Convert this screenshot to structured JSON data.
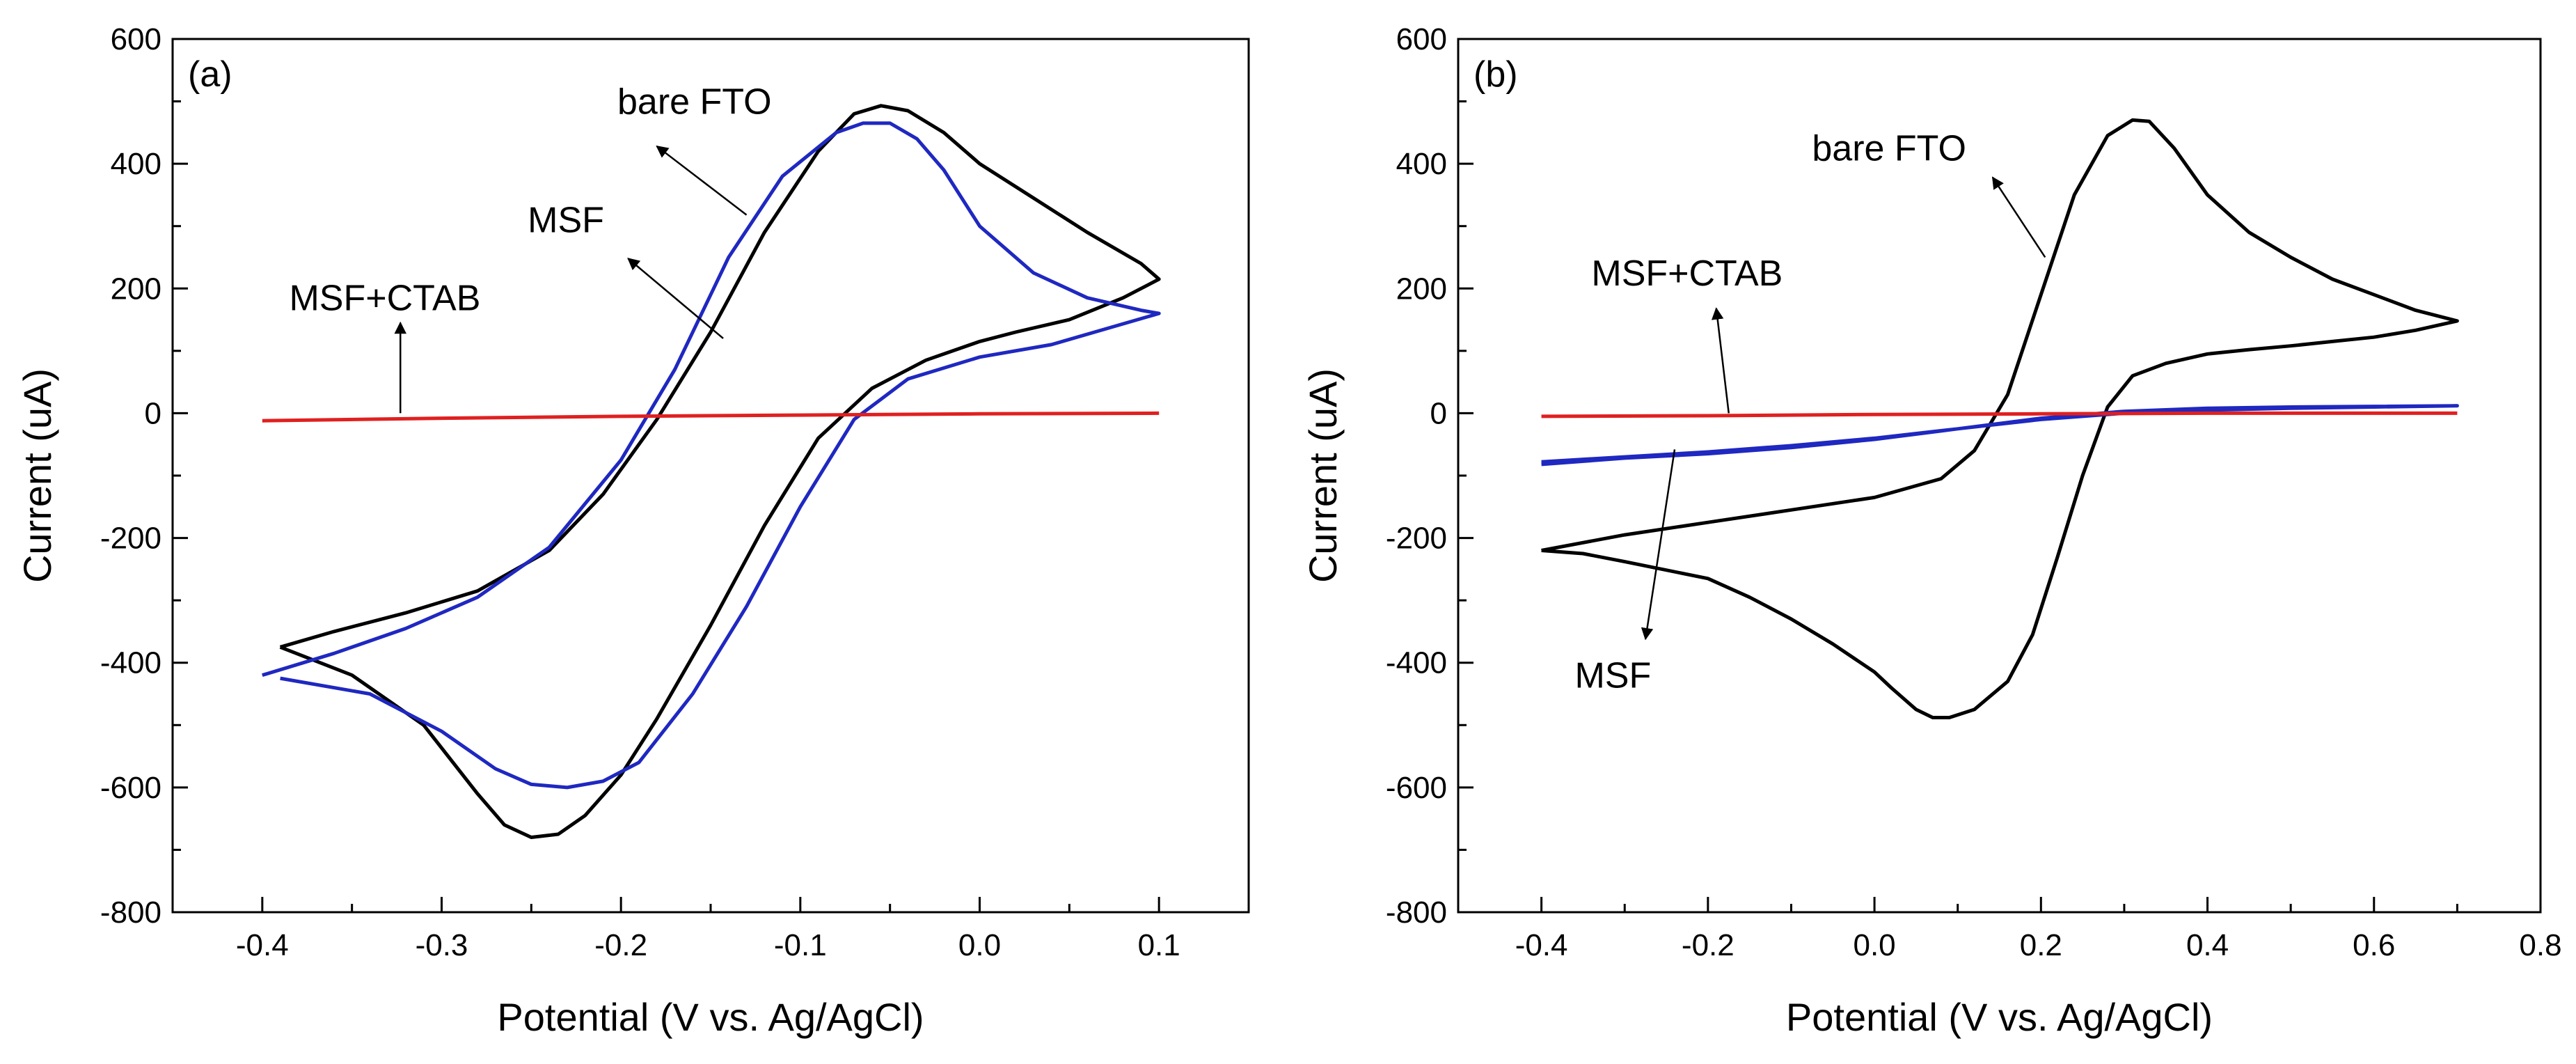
{
  "chart_data": [
    {
      "type": "line",
      "panel_label": "(a)",
      "xlabel": "Potential (V vs. Ag/AgCl)",
      "ylabel": "Current (uA)",
      "xlim": [
        -0.45,
        0.15
      ],
      "ylim": [
        -800,
        600
      ],
      "xticks": [
        -0.4,
        -0.3,
        -0.2,
        -0.1,
        0.0,
        0.1
      ],
      "xtick_labels": [
        "-0.4",
        "-0.3",
        "-0.2",
        "-0.1",
        "0.0",
        "0.1"
      ],
      "yticks": [
        -800,
        -600,
        -400,
        -200,
        0,
        200,
        400,
        600
      ],
      "ytick_labels": [
        "-800",
        "-600",
        "-400",
        "-200",
        "0",
        "200",
        "400",
        "600"
      ],
      "series": [
        {
          "name": "bare FTO",
          "color": "#000000",
          "x": [
            -0.39,
            -0.36,
            -0.32,
            -0.28,
            -0.24,
            -0.21,
            -0.18,
            -0.15,
            -0.12,
            -0.09,
            -0.07,
            -0.055,
            -0.04,
            -0.02,
            0.0,
            0.03,
            0.06,
            0.09,
            0.1,
            0.08,
            0.05,
            0.02,
            0.0,
            -0.03,
            -0.06,
            -0.09,
            -0.12,
            -0.15,
            -0.18,
            -0.2,
            -0.22,
            -0.235,
            -0.25,
            -0.265,
            -0.28,
            -0.31,
            -0.35,
            -0.39
          ],
          "y": [
            -375,
            -350,
            -320,
            -285,
            -220,
            -130,
            -10,
            130,
            290,
            420,
            480,
            493,
            485,
            450,
            400,
            345,
            290,
            240,
            215,
            185,
            150,
            130,
            115,
            85,
            40,
            -40,
            -180,
            -340,
            -490,
            -580,
            -645,
            -675,
            -680,
            -660,
            -610,
            -500,
            -420,
            -375
          ]
        },
        {
          "name": "MSF",
          "color": "#1f28c0",
          "x": [
            -0.4,
            -0.36,
            -0.32,
            -0.28,
            -0.24,
            -0.2,
            -0.17,
            -0.14,
            -0.11,
            -0.08,
            -0.065,
            -0.05,
            -0.035,
            -0.02,
            0.0,
            0.03,
            0.06,
            0.09,
            0.1,
            0.07,
            0.04,
            0.0,
            -0.04,
            -0.07,
            -0.1,
            -0.13,
            -0.16,
            -0.19,
            -0.21,
            -0.23,
            -0.25,
            -0.27,
            -0.3,
            -0.34,
            -0.39
          ],
          "y": [
            -420,
            -385,
            -345,
            -295,
            -215,
            -75,
            70,
            250,
            380,
            450,
            465,
            465,
            440,
            390,
            300,
            225,
            185,
            165,
            160,
            135,
            110,
            90,
            55,
            -10,
            -150,
            -310,
            -450,
            -560,
            -590,
            -600,
            -595,
            -570,
            -510,
            -450,
            -425
          ]
        },
        {
          "name": "MSF+CTAB",
          "color": "#e02020",
          "x": [
            -0.4,
            -0.3,
            -0.2,
            -0.1,
            0.0,
            0.1
          ],
          "y": [
            -12,
            -8,
            -5,
            -3,
            -1,
            0
          ]
        }
      ],
      "annotations": [
        {
          "text": "bare FTO",
          "arrow_tail": [
            -0.13,
            318
          ],
          "arrow_head": [
            -0.18,
            428
          ]
        },
        {
          "text": "MSF",
          "arrow_tail": [
            -0.143,
            120
          ],
          "arrow_head": [
            -0.196,
            248
          ]
        },
        {
          "text": "MSF+CTAB",
          "arrow_tail": [
            -0.323,
            0
          ],
          "arrow_head": [
            -0.323,
            145
          ]
        }
      ]
    },
    {
      "type": "line",
      "panel_label": "(b)",
      "xlabel": "Potential (V vs. Ag/AgCl)",
      "ylabel": "Current (uA)",
      "xlim": [
        -0.5,
        0.8
      ],
      "ylim": [
        -800,
        600
      ],
      "xticks": [
        -0.4,
        -0.2,
        0.0,
        0.2,
        0.4,
        0.6,
        0.8
      ],
      "xtick_labels": [
        "-0.4",
        "-0.2",
        "0.0",
        "0.2",
        "0.4",
        "0.6",
        "0.8"
      ],
      "yticks": [
        -800,
        -600,
        -400,
        -200,
        0,
        200,
        400,
        600
      ],
      "ytick_labels": [
        "-800",
        "-600",
        "-400",
        "-200",
        "0",
        "200",
        "400",
        "600"
      ],
      "series": [
        {
          "name": "bare FTO",
          "color": "#000000",
          "x": [
            -0.4,
            -0.3,
            -0.2,
            -0.1,
            0.0,
            0.08,
            0.12,
            0.16,
            0.2,
            0.24,
            0.28,
            0.31,
            0.33,
            0.36,
            0.4,
            0.45,
            0.5,
            0.55,
            0.6,
            0.65,
            0.7,
            0.65,
            0.6,
            0.55,
            0.5,
            0.45,
            0.4,
            0.35,
            0.31,
            0.28,
            0.25,
            0.22,
            0.19,
            0.16,
            0.12,
            0.09,
            0.07,
            0.05,
            0.02,
            0.0,
            -0.05,
            -0.1,
            -0.15,
            -0.2,
            -0.3,
            -0.35,
            -0.4
          ],
          "y": [
            -220,
            -195,
            -175,
            -155,
            -135,
            -105,
            -60,
            30,
            190,
            350,
            445,
            470,
            468,
            425,
            350,
            290,
            250,
            215,
            190,
            165,
            148,
            133,
            122,
            115,
            108,
            102,
            95,
            80,
            60,
            10,
            -100,
            -230,
            -355,
            -430,
            -475,
            -488,
            -488,
            -475,
            -440,
            -415,
            -370,
            -330,
            -295,
            -265,
            -238,
            -225,
            -220
          ]
        },
        {
          "name": "MSF",
          "color": "#1f28c0",
          "x": [
            -0.4,
            -0.3,
            -0.2,
            -0.1,
            0.0,
            0.1,
            0.2,
            0.3,
            0.4,
            0.5,
            0.6,
            0.7,
            0.6,
            0.5,
            0.4,
            0.3,
            0.2,
            0.1,
            0.0,
            -0.1,
            -0.2,
            -0.3,
            -0.4
          ],
          "y": [
            -82,
            -72,
            -65,
            -55,
            -42,
            -25,
            -8,
            3,
            8,
            10,
            11,
            12,
            10,
            8,
            5,
            0,
            -10,
            -25,
            -40,
            -52,
            -62,
            -70,
            -78
          ]
        },
        {
          "name": "MSF+CTAB",
          "color": "#e02020",
          "x": [
            -0.4,
            -0.2,
            0.0,
            0.2,
            0.4,
            0.7
          ],
          "y": [
            -5,
            -4,
            -2,
            -1,
            0,
            0
          ]
        }
      ],
      "annotations": [
        {
          "text": "bare FTO",
          "arrow_tail": [
            0.205,
            250
          ],
          "arrow_head": [
            0.142,
            378
          ]
        },
        {
          "text": "MSF+CTAB",
          "arrow_tail": [
            -0.175,
            0
          ],
          "arrow_head": [
            -0.19,
            168
          ]
        },
        {
          "text": "MSF",
          "arrow_tail": [
            -0.24,
            -58
          ],
          "arrow_head": [
            -0.275,
            -362
          ]
        }
      ]
    }
  ]
}
